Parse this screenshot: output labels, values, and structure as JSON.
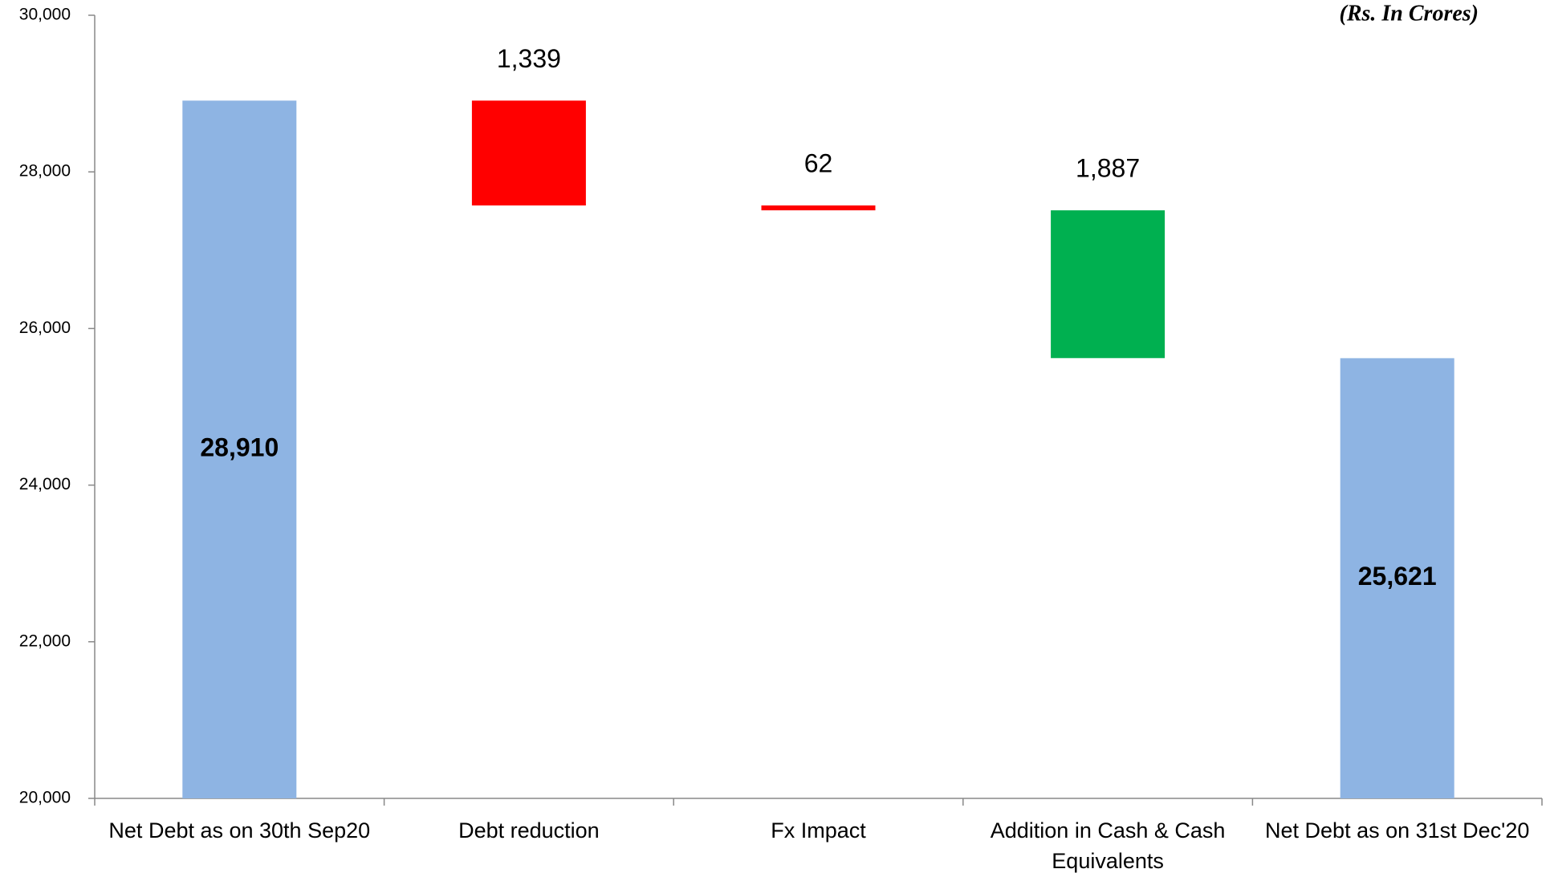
{
  "chart_data": {
    "type": "waterfall",
    "note": "(Rs. In Crores)",
    "categories": [
      "Net Debt as on 30th Sep20",
      "Debt reduction",
      "Fx Impact",
      "Addition in Cash & Cash Equivalents",
      "Net Debt as on 31st Dec'20"
    ],
    "values": [
      28910,
      -1339,
      -62,
      -1887,
      25621
    ],
    "value_labels": [
      "28,910",
      "1,339",
      "62",
      "1,887",
      "25,621"
    ],
    "bar_kinds": [
      "total",
      "change",
      "change",
      "change",
      "total"
    ],
    "colors": [
      "#8eb4e3",
      "#ff0000",
      "#ff0000",
      "#00b050",
      "#8eb4e3"
    ],
    "ylim": [
      20000,
      30000
    ],
    "yticks": [
      {
        "value": 20000,
        "label": "20,000"
      },
      {
        "value": 22000,
        "label": "22,000"
      },
      {
        "value": 24000,
        "label": "24,000"
      },
      {
        "value": 26000,
        "label": "26,000"
      },
      {
        "value": 28000,
        "label": "28,000"
      },
      {
        "value": 30000,
        "label": "30,000"
      }
    ],
    "grid": false
  }
}
